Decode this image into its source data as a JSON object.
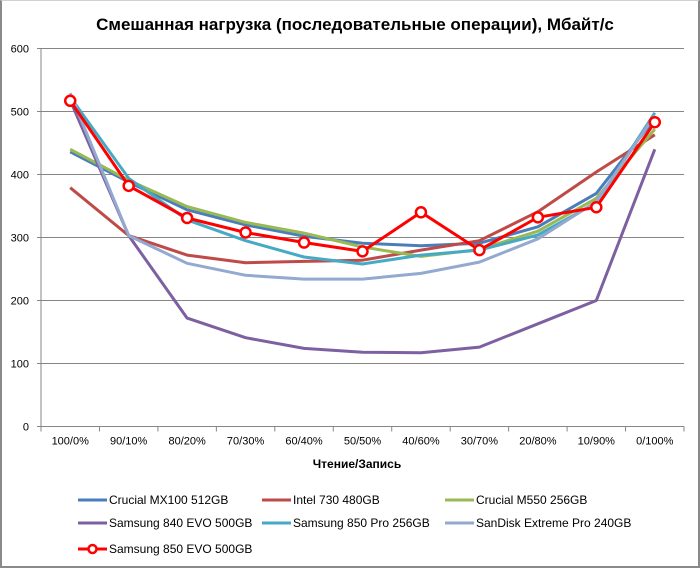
{
  "chart_data": {
    "type": "line",
    "title": "Смешанная нагрузка (последовательные операции), Мбайт/с",
    "xlabel": "Чтение/Запись",
    "ylabel": "",
    "ylim": [
      0,
      600
    ],
    "yticks": [
      0,
      100,
      200,
      300,
      400,
      500,
      600
    ],
    "grid": true,
    "legend_position": "bottom",
    "categories": [
      "100/0%",
      "90/10%",
      "80/20%",
      "70/30%",
      "60/40%",
      "50/50%",
      "40/60%",
      "30/70%",
      "20/80%",
      "10/90%",
      "0/100%"
    ],
    "series": [
      {
        "name": "Crucial MX100 512GB",
        "color": "#4A7EBB",
        "marker": false,
        "values": [
          436,
          388,
          344,
          320,
          302,
          291,
          287,
          291,
          317,
          370,
          489
        ]
      },
      {
        "name": "Intel 730 480GB",
        "color": "#BE4B48",
        "marker": false,
        "values": [
          379,
          303,
          272,
          260,
          262,
          264,
          280,
          295,
          341,
          404,
          463
        ]
      },
      {
        "name": "Crucial M550 256GB",
        "color": "#98B954",
        "marker": false,
        "values": [
          440,
          391,
          349,
          324,
          307,
          285,
          270,
          281,
          310,
          362,
          472
        ]
      },
      {
        "name": "Samsung 840 EVO 500GB",
        "color": "#7D60A0",
        "marker": false,
        "values": [
          518,
          303,
          172,
          141,
          124,
          118,
          117,
          126,
          163,
          200,
          440
        ]
      },
      {
        "name": "Samsung 850 Pro 256GB",
        "color": "#46AAC5",
        "marker": false,
        "values": [
          523,
          394,
          328,
          295,
          269,
          258,
          272,
          280,
          304,
          355,
          498
        ]
      },
      {
        "name": "SanDisk Extreme Pro 240GB",
        "color": "#93A9D0",
        "marker": false,
        "values": [
          529,
          303,
          259,
          240,
          234,
          234,
          243,
          261,
          298,
          357,
          494
        ]
      },
      {
        "name": "Samsung 850 EVO 500GB",
        "color": "#FF0000",
        "marker": true,
        "values": [
          517,
          382,
          331,
          308,
          292,
          278,
          340,
          280,
          332,
          348,
          483
        ]
      }
    ]
  }
}
